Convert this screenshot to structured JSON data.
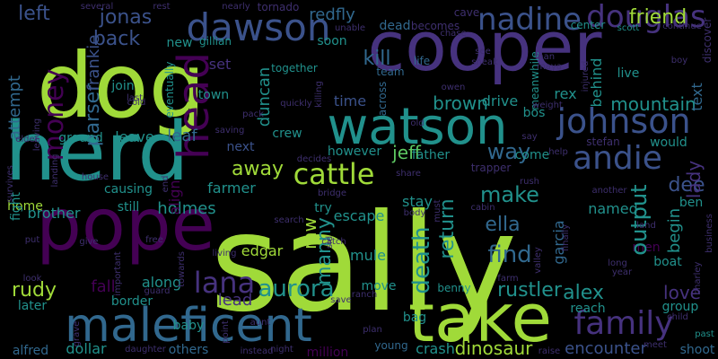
{
  "colors": {
    "background": "#000000",
    "palette": {
      "lime": "#a0da39",
      "green": "#5ec962",
      "teal": "#21918c",
      "blue": "#31688e",
      "indigo": "#3b528b",
      "purple": "#440154",
      "violet": "#46327e",
      "dark": "#3e2f6e",
      "darkgreen": "#1e7b6e"
    }
  },
  "words": [
    {
      "text": "sally",
      "color": "lime"
    },
    {
      "text": "dog",
      "color": "lime"
    },
    {
      "text": "cooper",
      "color": "violet"
    },
    {
      "text": "herd",
      "color": "teal"
    },
    {
      "text": "pope",
      "color": "purple"
    },
    {
      "text": "take",
      "color": "lime"
    },
    {
      "text": "maleficent",
      "color": "blue"
    },
    {
      "text": "watson",
      "color": "teal"
    },
    {
      "text": "johnson",
      "color": "indigo"
    },
    {
      "text": "dawson",
      "color": "indigo"
    },
    {
      "text": "money",
      "color": "purple"
    },
    {
      "text": "head",
      "color": "purple"
    },
    {
      "text": "cattle",
      "color": "lime"
    },
    {
      "text": "andie",
      "color": "indigo"
    },
    {
      "text": "family",
      "color": "violet"
    },
    {
      "text": "aurora",
      "color": "teal"
    },
    {
      "text": "lana",
      "color": "violet"
    },
    {
      "text": "douglas",
      "color": "violet"
    },
    {
      "text": "nadine",
      "color": "indigo"
    },
    {
      "text": "friend",
      "color": "lime"
    },
    {
      "text": "jonas",
      "color": "indigo"
    },
    {
      "text": "left",
      "color": "indigo"
    },
    {
      "text": "back",
      "color": "indigo"
    },
    {
      "text": "parser",
      "color": "blue"
    },
    {
      "text": "frankie",
      "color": "indigo"
    },
    {
      "text": "attempt",
      "color": "blue"
    },
    {
      "text": "redfly",
      "color": "blue"
    },
    {
      "text": "kill",
      "color": "blue"
    },
    {
      "text": "mountain",
      "color": "teal"
    },
    {
      "text": "make",
      "color": "teal"
    },
    {
      "text": "find",
      "color": "blue"
    },
    {
      "text": "way",
      "color": "blue"
    },
    {
      "text": "ella",
      "color": "blue"
    },
    {
      "text": "return",
      "color": "teal"
    },
    {
      "text": "death",
      "color": "teal"
    },
    {
      "text": "away",
      "color": "lime"
    },
    {
      "text": "brown",
      "color": "teal"
    },
    {
      "text": "drive",
      "color": "teal"
    },
    {
      "text": "time",
      "color": "indigo"
    },
    {
      "text": "jeff",
      "color": "green"
    },
    {
      "text": "rudy",
      "color": "lime"
    },
    {
      "text": "manny",
      "color": "teal"
    },
    {
      "text": "alex",
      "color": "teal"
    },
    {
      "text": "love",
      "color": "violet"
    },
    {
      "text": "dee",
      "color": "indigo"
    },
    {
      "text": "begin",
      "color": "teal"
    },
    {
      "text": "output",
      "color": "teal"
    },
    {
      "text": "lady",
      "color": "violet"
    },
    {
      "text": "rustler",
      "color": "teal"
    },
    {
      "text": "dinosaur",
      "color": "lime"
    },
    {
      "text": "encounter",
      "color": "indigo"
    },
    {
      "text": "crash",
      "color": "teal"
    },
    {
      "text": "brother",
      "color": "teal"
    },
    {
      "text": "home",
      "color": "lime"
    },
    {
      "text": "holmes",
      "color": "teal"
    },
    {
      "text": "farmer",
      "color": "teal"
    },
    {
      "text": "edgar",
      "color": "lime"
    },
    {
      "text": "mw",
      "color": "lime"
    },
    {
      "text": "mule",
      "color": "teal"
    },
    {
      "text": "escape",
      "color": "teal"
    },
    {
      "text": "lead",
      "color": "violet"
    },
    {
      "text": "baby",
      "color": "teal"
    },
    {
      "text": "border",
      "color": "teal"
    },
    {
      "text": "later",
      "color": "teal"
    },
    {
      "text": "alfred",
      "color": "blue"
    },
    {
      "text": "dollar",
      "color": "teal"
    },
    {
      "text": "others",
      "color": "blue"
    },
    {
      "text": "fall",
      "color": "purple"
    },
    {
      "text": "leaf",
      "color": "blue"
    },
    {
      "text": "leave",
      "color": "teal"
    },
    {
      "text": "crew",
      "color": "teal"
    },
    {
      "text": "next",
      "color": "indigo"
    },
    {
      "text": "duncan",
      "color": "teal"
    },
    {
      "text": "set",
      "color": "violet"
    },
    {
      "text": "town",
      "color": "teal"
    },
    {
      "text": "join",
      "color": "teal"
    },
    {
      "text": "align",
      "color": "purple"
    },
    {
      "text": "along",
      "color": "teal"
    },
    {
      "text": "fight",
      "color": "teal"
    },
    {
      "text": "named",
      "color": "teal"
    },
    {
      "text": "men",
      "color": "purple"
    },
    {
      "text": "boat",
      "color": "teal"
    },
    {
      "text": "group",
      "color": "teal"
    },
    {
      "text": "reach",
      "color": "teal"
    },
    {
      "text": "behind",
      "color": "teal"
    },
    {
      "text": "live",
      "color": "teal"
    },
    {
      "text": "rex",
      "color": "teal"
    },
    {
      "text": "bos",
      "color": "teal"
    },
    {
      "text": "text",
      "color": "blue"
    },
    {
      "text": "would",
      "color": "teal"
    },
    {
      "text": "come",
      "color": "teal"
    },
    {
      "text": "father",
      "color": "teal"
    },
    {
      "text": "stay",
      "color": "teal"
    },
    {
      "text": "try",
      "color": "teal"
    },
    {
      "text": "still",
      "color": "teal"
    },
    {
      "text": "million",
      "color": "purple"
    },
    {
      "text": "young",
      "color": "blue"
    },
    {
      "text": "bag",
      "color": "teal"
    },
    {
      "text": "benny",
      "color": "teal"
    },
    {
      "text": "move",
      "color": "teal"
    },
    {
      "text": "garcia",
      "color": "blue"
    },
    {
      "text": "ben",
      "color": "teal"
    },
    {
      "text": "soon",
      "color": "teal"
    },
    {
      "text": "team",
      "color": "blue"
    },
    {
      "text": "life",
      "color": "blue"
    },
    {
      "text": "together",
      "color": "teal"
    },
    {
      "text": "gillian",
      "color": "teal"
    },
    {
      "text": "new",
      "color": "teal"
    },
    {
      "text": "center",
      "color": "teal"
    },
    {
      "text": "scott",
      "color": "teal"
    },
    {
      "text": "however",
      "color": "teal"
    },
    {
      "text": "shoot",
      "color": "blue"
    },
    {
      "text": "past",
      "color": "teal"
    },
    {
      "text": "causing",
      "color": "teal"
    },
    {
      "text": "ground",
      "color": "teal"
    },
    {
      "text": "eventually",
      "color": "teal"
    },
    {
      "text": "across",
      "color": "blue"
    },
    {
      "text": "meanwhile",
      "color": "teal"
    },
    {
      "text": "output",
      "color": "teal"
    },
    {
      "text": "dead",
      "color": "blue"
    },
    {
      "text": "becomes",
      "color": "dark"
    },
    {
      "text": "tornado",
      "color": "dark"
    },
    {
      "text": "nearly",
      "color": "dark"
    },
    {
      "text": "rest",
      "color": "dark"
    },
    {
      "text": "several",
      "color": "dark"
    },
    {
      "text": "unable",
      "color": "dark"
    },
    {
      "text": "cave",
      "color": "dark"
    },
    {
      "text": "chase",
      "color": "dark"
    },
    {
      "text": "continue",
      "color": "dark"
    },
    {
      "text": "killing",
      "color": "dark"
    },
    {
      "text": "sneak",
      "color": "dark"
    },
    {
      "text": "man",
      "color": "dark"
    },
    {
      "text": "maya",
      "color": "dark"
    },
    {
      "text": "boy",
      "color": "dark"
    },
    {
      "text": "discover",
      "color": "dark"
    },
    {
      "text": "injured",
      "color": "dark"
    },
    {
      "text": "weight",
      "color": "dark"
    },
    {
      "text": "owen",
      "color": "dark"
    },
    {
      "text": "last",
      "color": "dark"
    },
    {
      "text": "cold",
      "color": "dark"
    },
    {
      "text": "leaving",
      "color": "dark"
    },
    {
      "text": "elder",
      "color": "dark"
    },
    {
      "text": "landing",
      "color": "dark"
    },
    {
      "text": "pack",
      "color": "dark"
    },
    {
      "text": "saving",
      "color": "dark"
    },
    {
      "text": "quickly",
      "color": "dark"
    },
    {
      "text": "decides",
      "color": "dark"
    },
    {
      "text": "old",
      "color": "dark"
    },
    {
      "text": "stefan",
      "color": "dark"
    },
    {
      "text": "help",
      "color": "dark"
    },
    {
      "text": "share",
      "color": "dark"
    },
    {
      "text": "survives",
      "color": "dark"
    },
    {
      "text": "house",
      "color": "dark"
    },
    {
      "text": "end",
      "color": "dark"
    },
    {
      "text": "bridge",
      "color": "dark"
    },
    {
      "text": "must",
      "color": "dark"
    },
    {
      "text": "rush",
      "color": "dark"
    },
    {
      "text": "another",
      "color": "dark"
    },
    {
      "text": "business",
      "color": "dark"
    },
    {
      "text": "put",
      "color": "dark"
    },
    {
      "text": "give",
      "color": "dark"
    },
    {
      "text": "free",
      "color": "dark"
    },
    {
      "text": "living",
      "color": "dark"
    },
    {
      "text": "search",
      "color": "dark"
    },
    {
      "text": "body",
      "color": "dark"
    },
    {
      "text": "cabin",
      "color": "dark"
    },
    {
      "text": "land",
      "color": "dark"
    },
    {
      "text": "finally",
      "color": "dark"
    },
    {
      "text": "valley",
      "color": "dark"
    },
    {
      "text": "charley",
      "color": "dark"
    },
    {
      "text": "important",
      "color": "dark"
    },
    {
      "text": "towards",
      "color": "dark"
    },
    {
      "text": "catch",
      "color": "dark"
    },
    {
      "text": "long",
      "color": "dark"
    },
    {
      "text": "year",
      "color": "dark"
    },
    {
      "text": "guard",
      "color": "dark"
    },
    {
      "text": "farm",
      "color": "dark"
    },
    {
      "text": "ranch",
      "color": "dark"
    },
    {
      "text": "sid",
      "color": "dark"
    },
    {
      "text": "look",
      "color": "dark"
    },
    {
      "text": "grave",
      "color": "dark"
    },
    {
      "text": "point",
      "color": "dark"
    },
    {
      "text": "aunt",
      "color": "dark"
    },
    {
      "text": "save",
      "color": "dark"
    },
    {
      "text": "plan",
      "color": "dark"
    },
    {
      "text": "child",
      "color": "dark"
    },
    {
      "text": "daughter",
      "color": "dark"
    },
    {
      "text": "instead",
      "color": "dark"
    },
    {
      "text": "night",
      "color": "dark"
    },
    {
      "text": "raise",
      "color": "dark"
    },
    {
      "text": "meet",
      "color": "dark"
    },
    {
      "text": "see",
      "color": "dark"
    },
    {
      "text": "trapper",
      "color": "dark"
    },
    {
      "text": "say",
      "color": "dark"
    }
  ]
}
